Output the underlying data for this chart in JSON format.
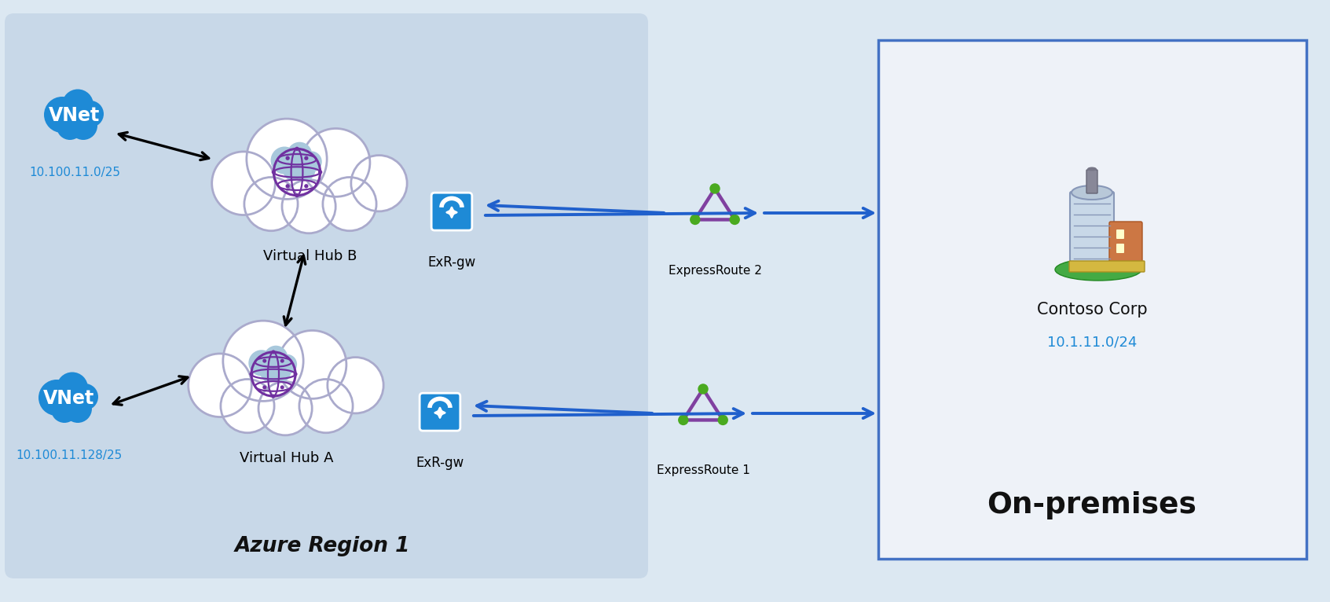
{
  "bg_color": "#dce8f2",
  "azure_region_bg": "#c8d8e8",
  "onprem_bg": "#eef2f8",
  "onprem_border": "#4472c4",
  "vnet_color": "#1e8ad6",
  "hub_globe_bg": "#a8c8dc",
  "hub_globe_line": "#7030a0",
  "exr_gw_color": "#1e8ad6",
  "tri_color": "#8040a0",
  "dot_color": "#4aaa20",
  "arrow_blue": "#2060cc",
  "arrow_black": "#111111",
  "ip_color": "#1e8ad6",
  "text_black": "#111111",
  "azure_region_label": "Azure Region 1",
  "vnet_b_label": "VNet",
  "vnet_b_ip": "10.100.11.0/25",
  "vnet_a_label": "VNet",
  "vnet_a_ip": "10.100.11.128/25",
  "hub_b_label": "Virtual Hub B",
  "hub_a_label": "Virtual Hub A",
  "exr_gw_label": "ExR-gw",
  "er2_label": "ExpressRoute 2",
  "er1_label": "ExpressRoute 1",
  "onprem_label": "On-premises",
  "contoso_label": "Contoso Corp",
  "contoso_ip": "10.1.11.0/24",
  "cloud_face": "#ffffff",
  "cloud_edge": "#aaaacc"
}
